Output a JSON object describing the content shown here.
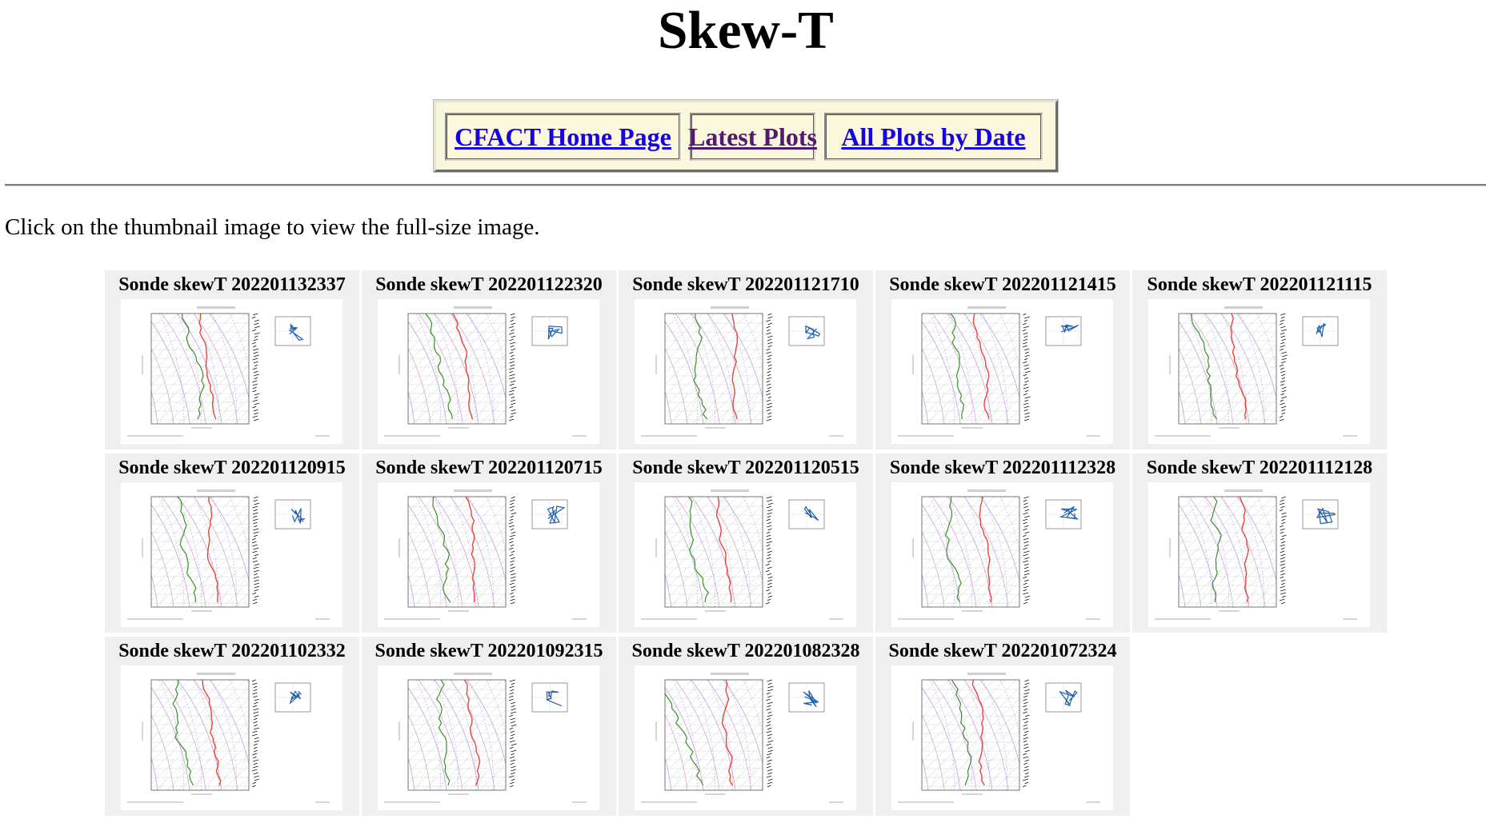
{
  "page": {
    "title": "Skew-T",
    "instructions": "Click on the thumbnail image to view the full-size image."
  },
  "nav": {
    "links": [
      {
        "label": "CFACT Home Page",
        "state": "unvisited"
      },
      {
        "label": "Latest Plots",
        "state": "visited"
      },
      {
        "label": "All Plots by Date",
        "state": "unvisited"
      }
    ]
  },
  "colors": {
    "nav_background": "#fbf7dc",
    "link": "#1500e6",
    "visited_link": "#55186f",
    "cell_background": "#efefef",
    "temperature_trace": "#e8453c",
    "dewpoint_trace": "#3a8f2a",
    "hodograph": "#1f5fae"
  },
  "thumbnails": [
    {
      "caption": "Sonde skewT 202201132337"
    },
    {
      "caption": "Sonde skewT 202201122320"
    },
    {
      "caption": "Sonde skewT 202201121710"
    },
    {
      "caption": "Sonde skewT 202201121415"
    },
    {
      "caption": "Sonde skewT 202201121115"
    },
    {
      "caption": "Sonde skewT 202201120915"
    },
    {
      "caption": "Sonde skewT 202201120715"
    },
    {
      "caption": "Sonde skewT 202201120515"
    },
    {
      "caption": "Sonde skewT 202201112328"
    },
    {
      "caption": "Sonde skewT 202201112128"
    },
    {
      "caption": "Sonde skewT 202201102332"
    },
    {
      "caption": "Sonde skewT 202201092315"
    },
    {
      "caption": "Sonde skewT 202201082328"
    },
    {
      "caption": "Sonde skewT 202201072324"
    }
  ]
}
